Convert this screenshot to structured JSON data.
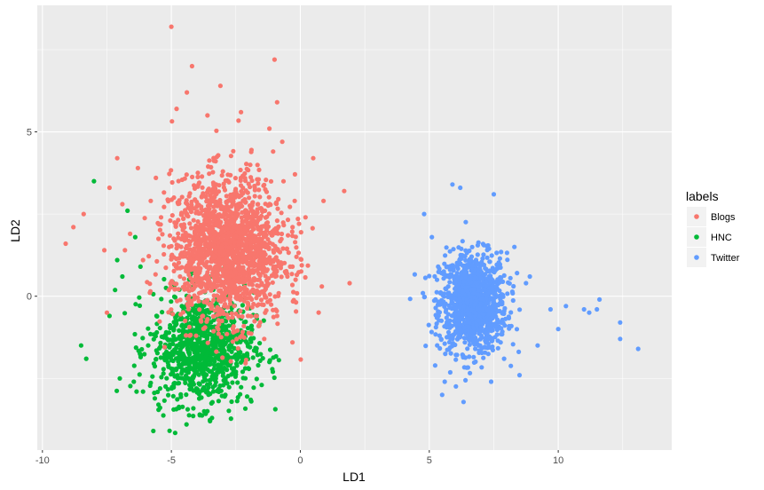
{
  "chart_data": {
    "type": "scatter",
    "xlabel": "LD1",
    "ylabel": "LD2",
    "xlim": [
      -10.2,
      14.4
    ],
    "ylim": [
      -4.68,
      8.85
    ],
    "x_ticks": [
      -10,
      -5,
      0,
      5,
      10
    ],
    "x_tick_labels": [
      "-10",
      "-5",
      "0",
      "5",
      "10"
    ],
    "y_ticks": [
      0,
      5
    ],
    "y_tick_labels": [
      "0",
      "5"
    ],
    "grid": true,
    "legend": {
      "title": "labels",
      "position": "right"
    },
    "series": [
      {
        "name": "Blogs",
        "color": "#F8766D",
        "center": [
          -2.8,
          1.4
        ],
        "spread": [
          1.1,
          1.1
        ],
        "points": [
          [
            -5.0,
            8.2
          ],
          [
            -4.2,
            7.0
          ],
          [
            -1.0,
            7.2
          ],
          [
            -3.1,
            6.4
          ],
          [
            -4.4,
            6.2
          ],
          [
            -4.8,
            5.7
          ],
          [
            -2.3,
            5.6
          ],
          [
            -0.9,
            5.9
          ],
          [
            -3.6,
            5.5
          ],
          [
            -1.2,
            5.1
          ],
          [
            -0.7,
            4.7
          ],
          [
            -7.1,
            4.2
          ],
          [
            -6.3,
            3.9
          ],
          [
            -5.6,
            3.6
          ],
          [
            -7.4,
            3.3
          ],
          [
            0.5,
            4.2
          ],
          [
            1.7,
            3.2
          ],
          [
            0.9,
            2.9
          ],
          [
            0.2,
            2.4
          ],
          [
            -0.3,
            2.1
          ],
          [
            -6.9,
            2.8
          ],
          [
            -8.4,
            2.5
          ],
          [
            -8.8,
            2.1
          ],
          [
            -9.1,
            1.6
          ],
          [
            -7.6,
            1.4
          ],
          [
            -6.6,
            1.9
          ],
          [
            -6.1,
            1.1
          ],
          [
            -5.4,
            2.4
          ],
          [
            -4.9,
            3.0
          ],
          [
            -1.5,
            0.4
          ],
          [
            -0.5,
            0.6
          ],
          [
            -0.9,
            -0.6
          ],
          [
            -1.6,
            -0.9
          ],
          [
            -1.4,
            -1.3
          ],
          [
            -3.2,
            -0.4
          ],
          [
            -3.6,
            -0.7
          ],
          [
            -2.6,
            -1.1
          ],
          [
            -7.5,
            -0.5
          ],
          [
            -6.8,
            1.4
          ],
          [
            -5.8,
            2.9
          ]
        ]
      },
      {
        "name": "HNC",
        "color": "#00BA38",
        "center": [
          -3.8,
          -1.6
        ],
        "spread": [
          1.0,
          0.85
        ],
        "points": [
          [
            -8.0,
            3.5
          ],
          [
            -6.7,
            2.6
          ],
          [
            -7.1,
            1.1
          ],
          [
            -6.4,
            1.8
          ],
          [
            -6.9,
            0.6
          ],
          [
            -6.2,
            0.9
          ],
          [
            -7.4,
            -0.6
          ],
          [
            -8.5,
            -1.5
          ],
          [
            -8.3,
            -1.9
          ],
          [
            -7.0,
            -2.5
          ],
          [
            -5.7,
            -4.1
          ],
          [
            -3.5,
            -3.8
          ],
          [
            -3.9,
            -3.6
          ],
          [
            -1.9,
            -3.2
          ],
          [
            -1.2,
            -2.0
          ],
          [
            -1.5,
            -2.7
          ],
          [
            -2.5,
            -2.3
          ],
          [
            -5.5,
            -3.3
          ],
          [
            -6.1,
            -2.9
          ],
          [
            -5.2,
            -1.1
          ],
          [
            -4.6,
            -1.4
          ],
          [
            -4.1,
            -2.1
          ],
          [
            -3.2,
            -1.8
          ],
          [
            -2.9,
            -2.5
          ],
          [
            -4.3,
            -2.7
          ],
          [
            -5.0,
            -2.2
          ],
          [
            -3.6,
            -1.2
          ],
          [
            -2.4,
            -1.6
          ],
          [
            -4.8,
            -0.6
          ],
          [
            -5.9,
            -1.5
          ]
        ]
      },
      {
        "name": "Twitter",
        "color": "#619CFF",
        "center": [
          6.7,
          -0.2
        ],
        "spread": [
          0.65,
          0.75
        ],
        "points": [
          [
            5.9,
            3.4
          ],
          [
            6.2,
            3.3
          ],
          [
            7.5,
            3.1
          ],
          [
            4.8,
            2.5
          ],
          [
            5.1,
            1.8
          ],
          [
            5.6,
            -2.6
          ],
          [
            5.5,
            -3.0
          ],
          [
            7.4,
            -2.6
          ],
          [
            8.5,
            -2.4
          ],
          [
            9.2,
            -1.5
          ],
          [
            9.7,
            -0.4
          ],
          [
            10.3,
            -0.3
          ],
          [
            11.0,
            -0.4
          ],
          [
            11.2,
            -0.5
          ],
          [
            11.5,
            -0.4
          ],
          [
            11.6,
            -0.1
          ],
          [
            12.4,
            -0.8
          ],
          [
            12.4,
            -1.3
          ],
          [
            13.1,
            -1.6
          ],
          [
            10.0,
            -1.0
          ],
          [
            8.9,
            0.6
          ],
          [
            8.3,
            1.5
          ],
          [
            5.3,
            0.5
          ],
          [
            5.4,
            -1.2
          ],
          [
            7.9,
            -1.9
          ]
        ]
      }
    ]
  }
}
